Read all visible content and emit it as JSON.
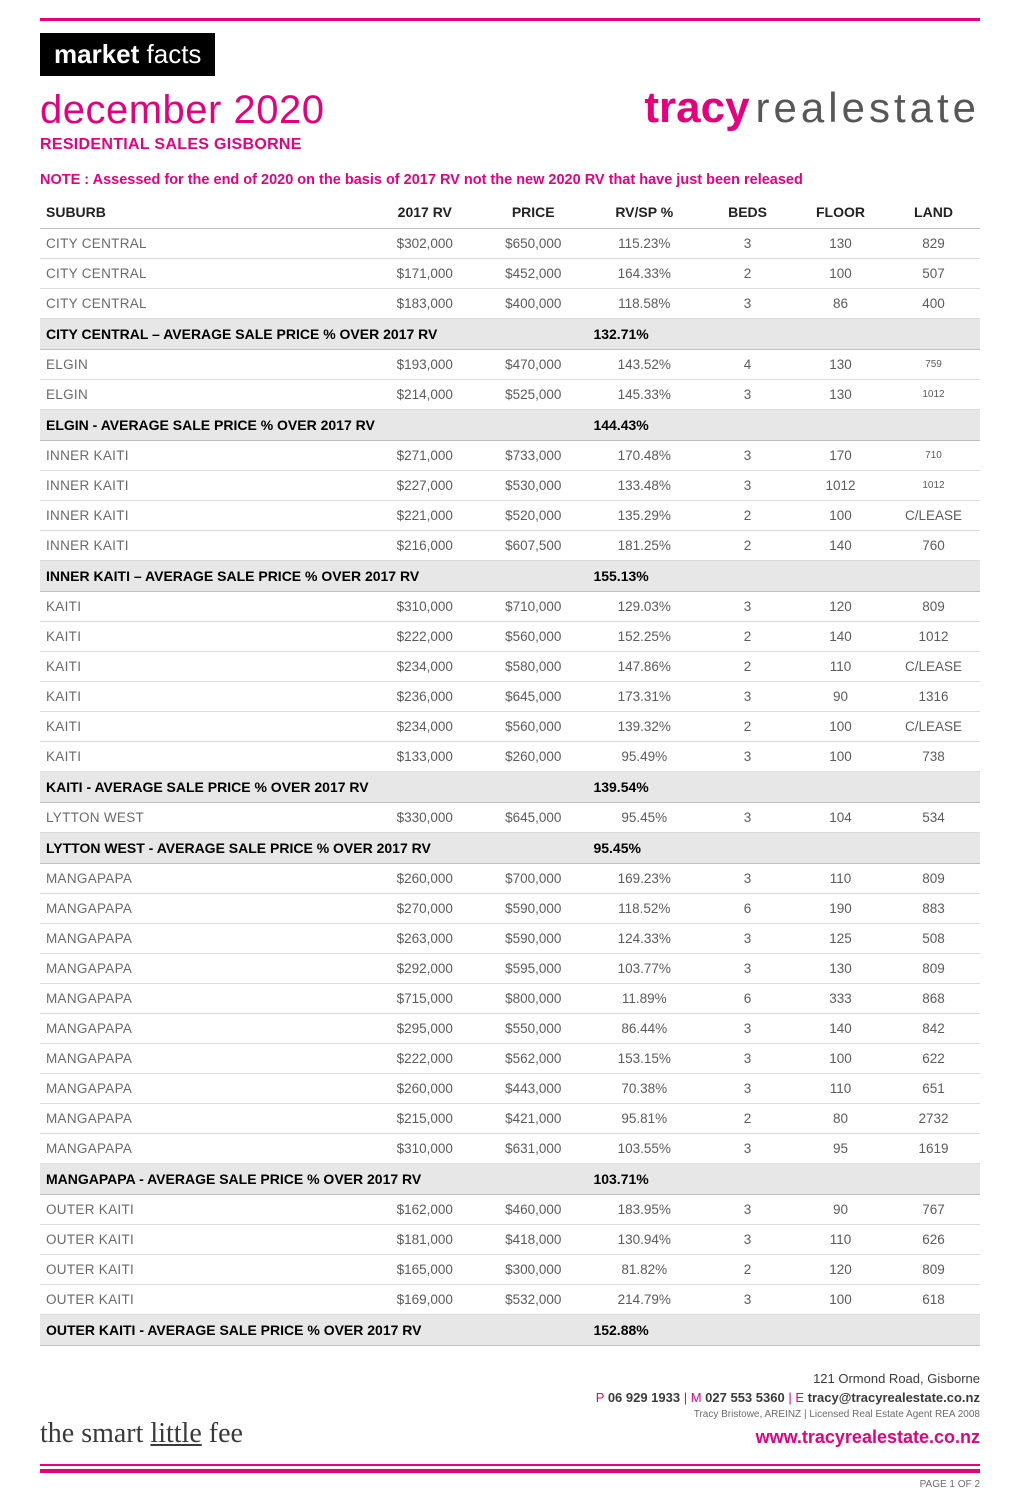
{
  "colors": {
    "accent": "#e6007e",
    "text_muted": "#5b5b5b",
    "section_bg": "#e7e7e7",
    "row_border": "#dcdcdc"
  },
  "header": {
    "mf_bold": "market",
    "mf_light": " facts",
    "month_line": "december 2020",
    "subline": "RESIDENTIAL SALES GISBORNE",
    "brand_bold": "tracy",
    "brand_light": "realestate"
  },
  "note": "NOTE : Assessed for the end of 2020 on the basis of 2017 RV not the new 2020 RV that have just been released",
  "columns": [
    "SUBURB",
    "2017 RV",
    "PRICE",
    "RV/SP %",
    "BEDS",
    "FLOOR",
    "LAND"
  ],
  "rows": [
    {
      "suburb": "CITY CENTRAL",
      "rv": "$302,000",
      "price": "$650,000",
      "rvsp": "115.23%",
      "beds": "3",
      "floor": "130",
      "land": "829"
    },
    {
      "suburb": "CITY CENTRAL",
      "rv": "$171,000",
      "price": "$452,000",
      "rvsp": "164.33%",
      "beds": "2",
      "floor": "100",
      "land": "507"
    },
    {
      "suburb": "CITY CENTRAL",
      "rv": "$183,000",
      "price": "$400,000",
      "rvsp": "118.58%",
      "beds": "3",
      "floor": "86",
      "land": "400"
    },
    {
      "section": true,
      "label": "CITY CENTRAL – AVERAGE SALE PRICE % OVER 2017 RV",
      "pct": "132.71%"
    },
    {
      "suburb": "ELGIN",
      "rv": "$193,000",
      "price": "$470,000",
      "rvsp": "143.52%",
      "beds": "4",
      "floor": "130",
      "land": "759",
      "land_small": true
    },
    {
      "suburb": "ELGIN",
      "rv": "$214,000",
      "price": "$525,000",
      "rvsp": "145.33%",
      "beds": "3",
      "floor": "130",
      "land": "1012",
      "land_small": true
    },
    {
      "section": true,
      "label": "ELGIN - AVERAGE SALE PRICE % OVER 2017 RV",
      "pct": "144.43%"
    },
    {
      "suburb": "INNER KAITI",
      "rv": "$271,000",
      "price": "$733,000",
      "rvsp": "170.48%",
      "beds": "3",
      "floor": "170",
      "land": "710",
      "land_small": true
    },
    {
      "suburb": "INNER KAITI",
      "rv": "$227,000",
      "price": "$530,000",
      "rvsp": "133.48%",
      "beds": "3",
      "floor": "1012",
      "land": "1012",
      "land_small": true
    },
    {
      "suburb": "INNER KAITI",
      "rv": "$221,000",
      "price": "$520,000",
      "rvsp": "135.29%",
      "beds": "2",
      "floor": "100",
      "land": "C/LEASE"
    },
    {
      "suburb": "INNER KAITI",
      "rv": "$216,000",
      "price": "$607,500",
      "rvsp": "181.25%",
      "beds": "2",
      "floor": "140",
      "land": "760"
    },
    {
      "section": true,
      "label": "INNER KAITI – AVERAGE SALE PRICE % OVER 2017 RV",
      "pct": "155.13%"
    },
    {
      "suburb": "KAITI",
      "rv": "$310,000",
      "price": "$710,000",
      "rvsp": "129.03%",
      "beds": "3",
      "floor": "120",
      "land": "809"
    },
    {
      "suburb": "KAITI",
      "rv": "$222,000",
      "price": "$560,000",
      "rvsp": "152.25%",
      "beds": "2",
      "floor": "140",
      "land": "1012"
    },
    {
      "suburb": "KAITI",
      "rv": "$234,000",
      "price": "$580,000",
      "rvsp": "147.86%",
      "beds": "2",
      "floor": "110",
      "land": "C/LEASE"
    },
    {
      "suburb": "KAITI",
      "rv": "$236,000",
      "price": "$645,000",
      "rvsp": "173.31%",
      "beds": "3",
      "floor": "90",
      "land": "1316"
    },
    {
      "suburb": "KAITI",
      "rv": "$234,000",
      "price": "$560,000",
      "rvsp": "139.32%",
      "beds": "2",
      "floor": "100",
      "land": "C/LEASE"
    },
    {
      "suburb": "KAITI",
      "rv": "$133,000",
      "price": "$260,000",
      "rvsp": "95.49%",
      "beds": "3",
      "floor": "100",
      "land": "738"
    },
    {
      "section": true,
      "label": "KAITI - AVERAGE SALE PRICE % OVER 2017 RV",
      "pct": "139.54%"
    },
    {
      "suburb": "LYTTON WEST",
      "rv": "$330,000",
      "price": "$645,000",
      "rvsp": "95.45%",
      "beds": "3",
      "floor": "104",
      "land": "534"
    },
    {
      "section": true,
      "label": "LYTTON WEST - AVERAGE SALE PRICE % OVER 2017 RV",
      "pct": "95.45%"
    },
    {
      "suburb": "MANGAPAPA",
      "rv": "$260,000",
      "price": "$700,000",
      "rvsp": "169.23%",
      "beds": "3",
      "floor": "110",
      "land": "809"
    },
    {
      "suburb": "MANGAPAPA",
      "rv": "$270,000",
      "price": "$590,000",
      "rvsp": "118.52%",
      "beds": "6",
      "floor": "190",
      "land": "883"
    },
    {
      "suburb": "MANGAPAPA",
      "rv": "$263,000",
      "price": "$590,000",
      "rvsp": "124.33%",
      "beds": "3",
      "floor": "125",
      "land": "508"
    },
    {
      "suburb": "MANGAPAPA",
      "rv": "$292,000",
      "price": "$595,000",
      "rvsp": "103.77%",
      "beds": "3",
      "floor": "130",
      "land": "809"
    },
    {
      "suburb": "MANGAPAPA",
      "rv": "$715,000",
      "price": "$800,000",
      "rvsp": "11.89%",
      "beds": "6",
      "floor": "333",
      "land": "868"
    },
    {
      "suburb": "MANGAPAPA",
      "rv": "$295,000",
      "price": "$550,000",
      "rvsp": "86.44%",
      "beds": "3",
      "floor": "140",
      "land": "842"
    },
    {
      "suburb": "MANGAPAPA",
      "rv": "$222,000",
      "price": "$562,000",
      "rvsp": "153.15%",
      "beds": "3",
      "floor": "100",
      "land": "622"
    },
    {
      "suburb": "MANGAPAPA",
      "rv": "$260,000",
      "price": "$443,000",
      "rvsp": "70.38%",
      "beds": "3",
      "floor": "110",
      "land": "651"
    },
    {
      "suburb": "MANGAPAPA",
      "rv": "$215,000",
      "price": "$421,000",
      "rvsp": "95.81%",
      "beds": "2",
      "floor": "80",
      "land": "2732"
    },
    {
      "suburb": "MANGAPAPA",
      "rv": "$310,000",
      "price": "$631,000",
      "rvsp": "103.55%",
      "beds": "3",
      "floor": "95",
      "land": "1619"
    },
    {
      "section": true,
      "label": "MANGAPAPA - AVERAGE SALE PRICE % OVER 2017 RV",
      "pct": "103.71%"
    },
    {
      "suburb": "OUTER KAITI",
      "rv": "$162,000",
      "price": "$460,000",
      "rvsp": "183.95%",
      "beds": "3",
      "floor": "90",
      "land": "767"
    },
    {
      "suburb": "OUTER KAITI",
      "rv": "$181,000",
      "price": "$418,000",
      "rvsp": "130.94%",
      "beds": "3",
      "floor": "110",
      "land": "626"
    },
    {
      "suburb": "OUTER KAITI",
      "rv": "$165,000",
      "price": "$300,000",
      "rvsp": "81.82%",
      "beds": "2",
      "floor": "120",
      "land": "809"
    },
    {
      "suburb": "OUTER KAITI",
      "rv": "$169,000",
      "price": "$532,000",
      "rvsp": "214.79%",
      "beds": "3",
      "floor": "100",
      "land": "618"
    },
    {
      "section": true,
      "label": "OUTER KAITI - AVERAGE SALE PRICE % OVER 2017 RV",
      "pct": "152.88%"
    }
  ],
  "footer": {
    "sig_parts": [
      "the smart ",
      "little",
      " fee"
    ],
    "address": "121 Ormond Road, Gisborne",
    "contact_parts": {
      "p_label": "P ",
      "p_num": "06 929 1933",
      "sep": "  |  ",
      "m_label": "M ",
      "m_num": "027 553 5360",
      "e_label": "E ",
      "e_addr": "tracy@tracyrealestate.co.nz"
    },
    "fine": "Tracy Bristowe, AREINZ  |  Licensed Real Estate Agent REA 2008",
    "url": "www.tracyrealestate.co.nz",
    "page": "PAGE 1 OF  2"
  }
}
